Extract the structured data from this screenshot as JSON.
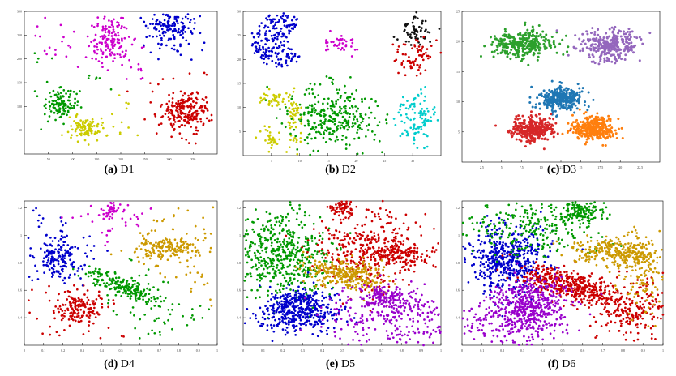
{
  "figure": {
    "panels": [
      {
        "id": "a",
        "caption_letter": "(a)",
        "caption_name": "D1",
        "chart_data": {
          "type": "scatter",
          "title": "D1",
          "xlim": [
            0,
            400
          ],
          "ylim": [
            0,
            300
          ],
          "x_ticks": [
            50,
            100,
            150,
            200,
            250,
            300,
            350
          ],
          "y_ticks": [
            50,
            100,
            150,
            200,
            250,
            300
          ],
          "series": [
            {
              "color": "#0000cc",
              "clusters": [
                {
                  "cx": 305,
                  "cy": 265,
                  "sx": 22,
                  "sy": 18,
                  "n": 150
                }
              ]
            },
            {
              "color": "#cc00cc",
              "clusters": [
                {
                  "cx": 180,
                  "cy": 240,
                  "sx": 20,
                  "sy": 22,
                  "n": 130
                }
              ]
            },
            {
              "color": "#009900",
              "clusters": [
                {
                  "cx": 75,
                  "cy": 105,
                  "sx": 14,
                  "sy": 16,
                  "n": 110
                }
              ]
            },
            {
              "color": "#cccc00",
              "clusters": [
                {
                  "cx": 125,
                  "cy": 55,
                  "sx": 16,
                  "sy": 12,
                  "n": 90
                }
              ]
            },
            {
              "color": "#cc0000",
              "clusters": [
                {
                  "cx": 335,
                  "cy": 90,
                  "sx": 25,
                  "sy": 20,
                  "n": 200
                }
              ]
            }
          ],
          "noise": {
            "n": 150,
            "xlim": [
              20,
              380
            ],
            "ylim": [
              20,
              290
            ]
          }
        }
      },
      {
        "id": "b",
        "caption_letter": "(b)",
        "caption_name": "D2",
        "chart_data": {
          "type": "scatter",
          "title": "D2",
          "xlim": [
            0,
            35
          ],
          "ylim": [
            0,
            30
          ],
          "x_ticks": [
            5,
            10,
            15,
            20,
            25,
            30
          ],
          "y_ticks": [
            5,
            10,
            15,
            20,
            25,
            30
          ],
          "series": [
            {
              "color": "#0000cc",
              "clusters": [
                {
                  "cx": 6.5,
                  "cy": 24,
                  "sx": 3.2,
                  "sy": 3.5,
                  "n": 200,
                  "shape": "crescent"
                }
              ]
            },
            {
              "color": "#cc00cc",
              "clusters": [
                {
                  "cx": 17.5,
                  "cy": 23.5,
                  "sx": 1.4,
                  "sy": 1.0,
                  "n": 40
                }
              ]
            },
            {
              "color": "#111111",
              "clusters": [
                {
                  "cx": 30.5,
                  "cy": 26,
                  "sx": 1.3,
                  "sy": 1.5,
                  "n": 60
                }
              ]
            },
            {
              "color": "#cc0000",
              "clusters": [
                {
                  "cx": 30.5,
                  "cy": 20.5,
                  "sx": 1.5,
                  "sy": 1.8,
                  "n": 70
                }
              ]
            },
            {
              "color": "#00cccc",
              "clusters": [
                {
                  "cx": 30.5,
                  "cy": 8,
                  "sx": 1.6,
                  "sy": 3.0,
                  "n": 110
                }
              ]
            },
            {
              "color": "#009900",
              "clusters": [
                {
                  "cx": 15.5,
                  "cy": 7.5,
                  "sx": 4.0,
                  "sy": 3.5,
                  "n": 300
                }
              ]
            },
            {
              "color": "#cccc00",
              "clusters": [
                {
                  "cx": 9.0,
                  "cy": 7.5,
                  "sx": 0.6,
                  "sy": 3.5,
                  "n": 60
                },
                {
                  "cx": 5.5,
                  "cy": 11.5,
                  "sx": 1.2,
                  "sy": 1.0,
                  "n": 40
                },
                {
                  "cx": 5.0,
                  "cy": 3.5,
                  "sx": 1.0,
                  "sy": 0.9,
                  "n": 35
                }
              ]
            }
          ],
          "noise": {
            "n": 0
          }
        }
      },
      {
        "id": "c",
        "caption_letter": "(c)",
        "caption_name": "D3",
        "chart_data": {
          "type": "scatter",
          "title": "D3",
          "xlim": [
            0,
            25
          ],
          "ylim": [
            0,
            25
          ],
          "x_ticks": [
            2.5,
            5,
            7.5,
            10,
            12.5,
            15,
            17.5,
            20,
            22.5
          ],
          "y_ticks": [
            5,
            10,
            15,
            20,
            25
          ],
          "series": [
            {
              "color": "#2ca02c",
              "clusters": [
                {
                  "cx": 7.5,
                  "cy": 19.5,
                  "sx": 2.0,
                  "sy": 1.2,
                  "n": 300
                }
              ]
            },
            {
              "color": "#9467bd",
              "clusters": [
                {
                  "cx": 18.5,
                  "cy": 19.5,
                  "sx": 2.0,
                  "sy": 1.3,
                  "n": 300
                }
              ]
            },
            {
              "color": "#1f77b4",
              "clusters": [
                {
                  "cx": 12.5,
                  "cy": 10.5,
                  "sx": 1.5,
                  "sy": 1.0,
                  "n": 320
                }
              ]
            },
            {
              "color": "#d62728",
              "clusters": [
                {
                  "cx": 9.0,
                  "cy": 5.5,
                  "sx": 1.4,
                  "sy": 1.0,
                  "n": 320
                }
              ]
            },
            {
              "color": "#ff7f0e",
              "clusters": [
                {
                  "cx": 16.5,
                  "cy": 5.5,
                  "sx": 1.4,
                  "sy": 1.0,
                  "n": 320
                }
              ]
            }
          ],
          "noise": {
            "n": 0
          }
        }
      },
      {
        "id": "d",
        "caption_letter": "(d)",
        "caption_name": "D4",
        "chart_data": {
          "type": "scatter",
          "title": "D4",
          "xlim": [
            0,
            1
          ],
          "ylim": [
            0.2,
            1.25
          ],
          "x_ticks": [
            0,
            0.1,
            0.2,
            0.3,
            0.4,
            0.5,
            0.6,
            0.7,
            0.8,
            0.9,
            1.0
          ],
          "y_ticks": [
            0.4,
            0.6,
            0.8,
            1.0,
            1.2
          ],
          "series": [
            {
              "color": "#0000cc",
              "clusters": [
                {
                  "cx": 0.18,
                  "cy": 0.85,
                  "sx": 0.05,
                  "sy": 0.09,
                  "n": 150
                }
              ]
            },
            {
              "color": "#009900",
              "clusters": [
                {
                  "cx": 0.52,
                  "cy": 0.62,
                  "sx": 0.12,
                  "sy": 0.03,
                  "n": 200,
                  "rot": -0.55
                }
              ]
            },
            {
              "color": "#cc0000",
              "clusters": [
                {
                  "cx": 0.28,
                  "cy": 0.47,
                  "sx": 0.06,
                  "sy": 0.06,
                  "n": 150
                }
              ]
            },
            {
              "color": "#cc9900",
              "clusters": [
                {
                  "cx": 0.75,
                  "cy": 0.9,
                  "sx": 0.08,
                  "sy": 0.04,
                  "n": 150
                }
              ]
            },
            {
              "color": "#cc00cc",
              "clusters": [
                {
                  "cx": 0.45,
                  "cy": 1.18,
                  "sx": 0.03,
                  "sy": 0.03,
                  "n": 40
                }
              ]
            }
          ],
          "noise": {
            "n": 220,
            "xlim": [
              0.02,
              0.98
            ],
            "ylim": [
              0.25,
              1.22
            ]
          }
        }
      },
      {
        "id": "e",
        "caption_letter": "(e)",
        "caption_name": "D5",
        "chart_data": {
          "type": "scatter",
          "title": "D5",
          "xlim": [
            0,
            1
          ],
          "ylim": [
            0.2,
            1.25
          ],
          "x_ticks": [
            0,
            0.1,
            0.2,
            0.3,
            0.4,
            0.5,
            0.6,
            0.7,
            0.8,
            0.9,
            1.0
          ],
          "y_ticks": [
            0.4,
            0.6,
            0.8,
            1.0,
            1.2
          ],
          "series": [
            {
              "color": "#009900",
              "clusters": [
                {
                  "cx": 0.2,
                  "cy": 0.85,
                  "sx": 0.13,
                  "sy": 0.16,
                  "n": 500
                }
              ]
            },
            {
              "color": "#0000cc",
              "clusters": [
                {
                  "cx": 0.28,
                  "cy": 0.46,
                  "sx": 0.1,
                  "sy": 0.08,
                  "n": 450
                }
              ]
            },
            {
              "color": "#cc0000",
              "clusters": [
                {
                  "cx": 0.62,
                  "cy": 0.9,
                  "sx": 0.12,
                  "sy": 0.14,
                  "n": 350
                },
                {
                  "cx": 0.8,
                  "cy": 0.85,
                  "sx": 0.08,
                  "sy": 0.05,
                  "n": 150
                },
                {
                  "cx": 0.5,
                  "cy": 1.2,
                  "sx": 0.03,
                  "sy": 0.03,
                  "n": 60
                }
              ]
            },
            {
              "color": "#cc9900",
              "clusters": [
                {
                  "cx": 0.52,
                  "cy": 0.72,
                  "sx": 0.1,
                  "sy": 0.05,
                  "n": 300,
                  "rot": -0.3
                }
              ]
            },
            {
              "color": "#9900cc",
              "clusters": [
                {
                  "cx": 0.72,
                  "cy": 0.55,
                  "sx": 0.06,
                  "sy": 0.04,
                  "n": 120
                },
                {
                  "cx": 0.75,
                  "cy": 0.4,
                  "sx": 0.18,
                  "sy": 0.12,
                  "n": 300
                }
              ]
            }
          ],
          "noise": {
            "n": 0
          }
        }
      },
      {
        "id": "f",
        "caption_letter": "(f)",
        "caption_name": "D6",
        "chart_data": {
          "type": "scatter",
          "title": "D6",
          "xlim": [
            0,
            1
          ],
          "ylim": [
            0.2,
            1.25
          ],
          "x_ticks": [
            0,
            0.1,
            0.2,
            0.3,
            0.4,
            0.5,
            0.6,
            0.7,
            0.8,
            0.9,
            1.0
          ],
          "y_ticks": [
            0.4,
            0.6,
            0.8,
            1.0,
            1.2
          ],
          "series": [
            {
              "color": "#0000cc",
              "clusters": [
                {
                  "cx": 0.22,
                  "cy": 0.83,
                  "sx": 0.1,
                  "sy": 0.12,
                  "n": 500
                }
              ]
            },
            {
              "color": "#cc0000",
              "clusters": [
                {
                  "cx": 0.55,
                  "cy": 0.63,
                  "sx": 0.13,
                  "sy": 0.05,
                  "n": 450,
                  "rot": -0.45
                },
                {
                  "cx": 0.85,
                  "cy": 0.45,
                  "sx": 0.1,
                  "sy": 0.12,
                  "n": 200
                }
              ]
            },
            {
              "color": "#9900cc",
              "clusters": [
                {
                  "cx": 0.35,
                  "cy": 0.5,
                  "sx": 0.1,
                  "sy": 0.1,
                  "n": 450
                },
                {
                  "cx": 0.2,
                  "cy": 0.35,
                  "sx": 0.12,
                  "sy": 0.08,
                  "n": 150
                }
              ]
            },
            {
              "color": "#009900",
              "clusters": [
                {
                  "cx": 0.6,
                  "cy": 1.17,
                  "sx": 0.05,
                  "sy": 0.04,
                  "n": 120
                },
                {
                  "cx": 0.35,
                  "cy": 1.05,
                  "sx": 0.18,
                  "sy": 0.1,
                  "n": 250
                }
              ]
            },
            {
              "color": "#cc9900",
              "clusters": [
                {
                  "cx": 0.75,
                  "cy": 0.88,
                  "sx": 0.1,
                  "sy": 0.05,
                  "n": 250
                },
                {
                  "cx": 0.9,
                  "cy": 0.75,
                  "sx": 0.05,
                  "sy": 0.15,
                  "n": 150
                }
              ]
            }
          ],
          "noise": {
            "n": 0
          }
        }
      }
    ]
  }
}
